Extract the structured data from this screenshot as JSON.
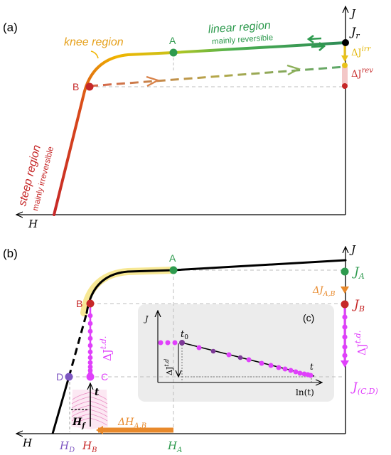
{
  "panel_a": {
    "panel_label": "(a)",
    "y_axis_label": "J",
    "x_axis_label": "H",
    "jr": "J",
    "jr_sub": "r",
    "knee_label": "knee region",
    "linear_label": "linear region",
    "linear_sublabel": "mainly reversible",
    "steep_label": "steep region",
    "steep_sublabel": "mainly irreversible",
    "point_a": "A",
    "point_b": "B",
    "dj_irr": "ΔJ",
    "dj_irr_sup": "irr",
    "dj_rev": "ΔJ",
    "dj_rev_sup": "rev"
  },
  "panel_b": {
    "panel_label": "(b)",
    "y_axis_label": "J",
    "x_axis_label": "H",
    "point_a": "A",
    "point_b": "B",
    "point_c": "C",
    "point_d": "D",
    "ja": "J",
    "ja_sub": "A",
    "jb": "J",
    "jb_sub": "B",
    "jcd": "J",
    "jcd_sub": "(C,D)",
    "dj_ab": "ΔJ",
    "dj_ab_sub": "A,B",
    "dj_td": "ΔJ",
    "dj_td_sup": "t.d.",
    "dj_td_right": "ΔJ",
    "dj_td_right_sup": "t.d.",
    "dh_ab": "ΔH",
    "dh_ab_sub": "A,B",
    "t_label": "t",
    "hf": "H",
    "hf_sub": "f",
    "hd": "H",
    "hd_sub": "D",
    "hb": "H",
    "hb_sub": "B",
    "ha": "H",
    "ha_sub": "A"
  },
  "inset_c": {
    "panel_label": "(c)",
    "y_axis_label": "J",
    "x_axis_label": "ln(t)",
    "t0": "t",
    "t0_sub": "0",
    "t_end": "t",
    "dj_td": "ΔJ",
    "dj_td_sup": "t.d"
  },
  "colors": {
    "steep": "#c62828",
    "knee": "#f0b400",
    "linear": "#2e9a4e",
    "irr": "#e9c21a",
    "rev": "#d96a6a",
    "magenta": "#e040fb",
    "orange": "#e8892b",
    "purple": "#7e57c2",
    "inset_bg": "#ececec"
  }
}
